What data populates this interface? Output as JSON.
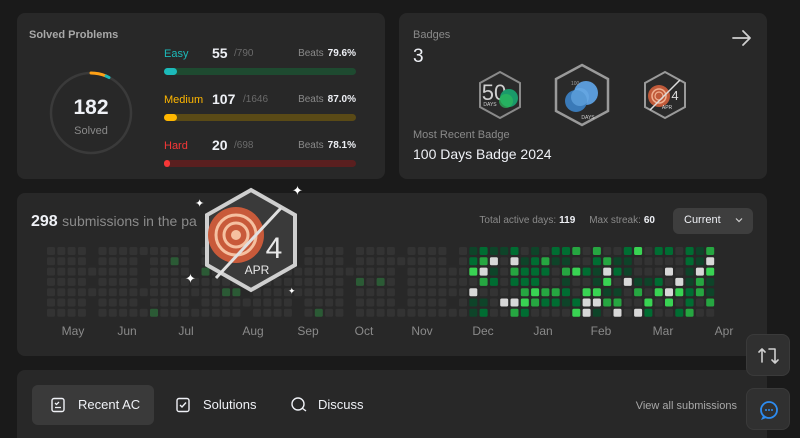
{
  "solved": {
    "title": "Solved Problems",
    "total": "182",
    "total_label": "Solved",
    "difficulties": [
      {
        "name": "Easy",
        "solved": "55",
        "total": "/790",
        "beats_label": "Beats",
        "beats": "79.6%",
        "color": "#1cbaba",
        "track": "#1e4a30",
        "progress": 0.07
      },
      {
        "name": "Medium",
        "solved": "107",
        "total": "/1646",
        "beats_label": "Beats",
        "beats": "87.0%",
        "color": "#ffb700",
        "track": "#5a4a16",
        "progress": 0.065
      },
      {
        "name": "Hard",
        "solved": "20",
        "total": "/698",
        "beats_label": "Beats",
        "beats": "78.1%",
        "color": "#f63737",
        "track": "#5a1f1f",
        "progress": 0.029
      }
    ]
  },
  "badges": {
    "label": "Badges",
    "count": "3",
    "recent_label": "Most Recent Badge",
    "recent_name": "100 Days Badge 2024",
    "items": [
      {
        "text_top": "50",
        "text_bottom": "DAYS"
      },
      {
        "text_top": "100",
        "text_bottom": "DAYS"
      },
      {
        "text_top": "4",
        "text_bottom": "APR"
      }
    ]
  },
  "submissions": {
    "count": "298",
    "text": "submissions in the pa",
    "active_days_label": "Total active days:",
    "active_days": "119",
    "max_streak_label": "Max streak:",
    "max_streak": "60",
    "select_value": "Current",
    "months": [
      "May",
      "Jun",
      "Jul",
      "Aug",
      "Sep",
      "Oct",
      "Nov",
      "Dec",
      "Jan",
      "Feb",
      "Mar",
      "Apr"
    ]
  },
  "overlay_badge": {
    "number": "4",
    "label": "APR"
  },
  "tabs": {
    "items": [
      "Recent AC",
      "Solutions",
      "Discuss"
    ],
    "view_all": "View all submissions"
  },
  "colors": {
    "bg": "#1a1a1a",
    "card": "#282828",
    "green": "#2cbb5d",
    "empty": "#3a3a3a"
  }
}
